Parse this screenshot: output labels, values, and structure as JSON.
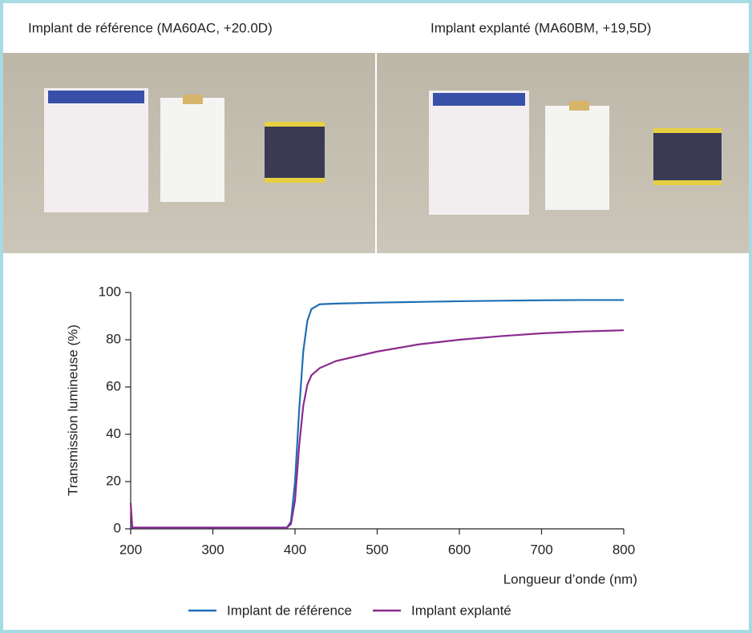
{
  "header": {
    "left": "Implant de référence (MA60AC, +20.0D)",
    "right": "Implant explanté (MA60BM, +19,5D)"
  },
  "chart_data": {
    "type": "line",
    "y_label": "Transmission lumineuse (%)",
    "x_label": "Longueur d’onde (nm)",
    "x": [
      200,
      202,
      205,
      390,
      395,
      400,
      405,
      410,
      415,
      420,
      430,
      450,
      500,
      550,
      600,
      650,
      700,
      750,
      800
    ],
    "series": [
      {
        "name": "Implant de référence",
        "color": "#1f6fb5",
        "values": [
          0.5,
          0.5,
          0.5,
          0.5,
          3,
          20,
          50,
          75,
          88,
          93,
          95,
          95.3,
          95.7,
          96,
          96.3,
          96.5,
          96.7,
          96.8,
          96.8
        ]
      },
      {
        "name": "Implant explanté",
        "color": "#8b2a8e",
        "values": [
          11,
          0.5,
          0.5,
          0.5,
          2,
          12,
          35,
          52,
          61,
          65,
          68,
          71,
          75,
          78,
          80,
          81.5,
          82.7,
          83.5,
          84
        ]
      }
    ],
    "xlim": [
      200,
      800
    ],
    "xticks": [
      200,
      300,
      400,
      500,
      600,
      700,
      800
    ],
    "ylim": [
      0,
      100
    ],
    "yticks": [
      0,
      20,
      40,
      60,
      80,
      100
    ],
    "grid": false
  }
}
